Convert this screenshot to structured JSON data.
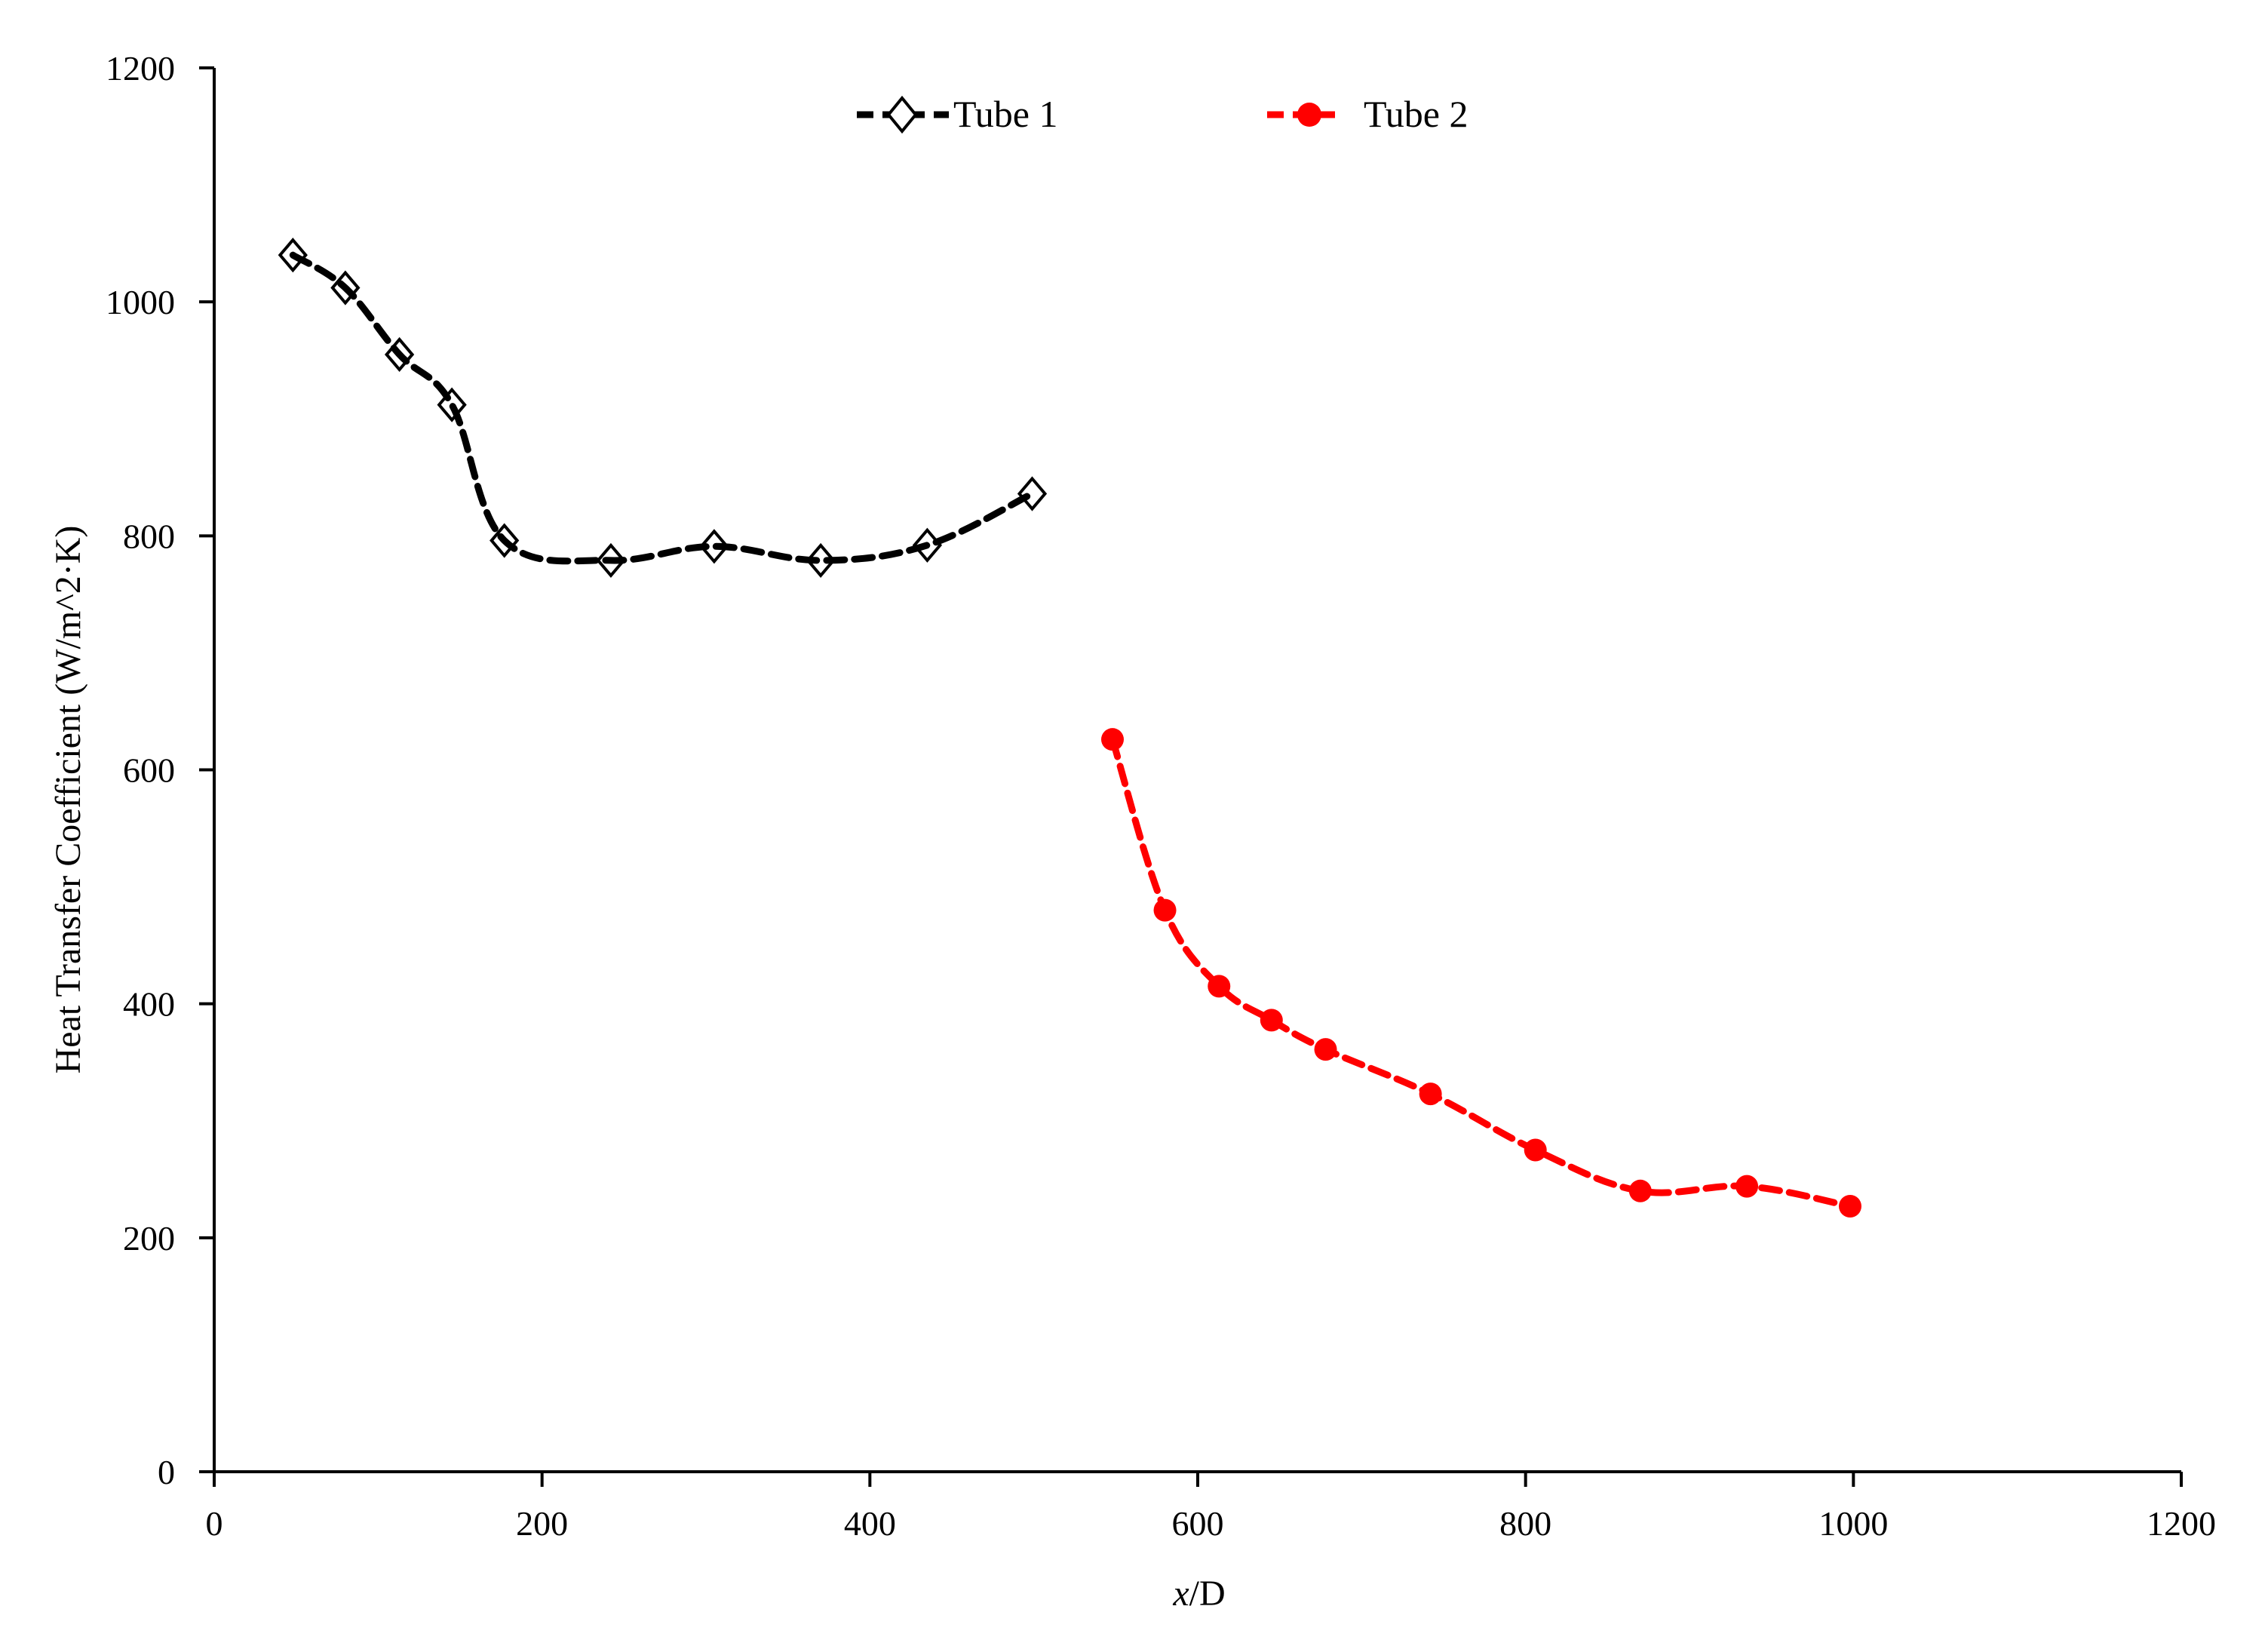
{
  "chart_data": {
    "type": "line",
    "title": "",
    "xlabel_italic": "x",
    "xlabel_rest": "/D",
    "xlabel": "x/D",
    "ylabel": "Heat Transfer Coefficient  (W/m^2·K)",
    "xlim": [
      0,
      1200
    ],
    "ylim": [
      0,
      1200
    ],
    "xticks": [
      0,
      200,
      400,
      600,
      800,
      1000,
      1200
    ],
    "yticks": [
      0,
      200,
      400,
      600,
      800,
      1000,
      1200
    ],
    "grid": false,
    "legend_position": "top-center",
    "series": [
      {
        "name": "Tube 1",
        "color": "#000000",
        "marker": "open-diamond",
        "line": "dashed",
        "x": [
          48,
          80,
          113,
          145,
          177,
          242,
          305,
          370,
          435,
          499
        ],
        "y": [
          1040,
          1012,
          955,
          912,
          796,
          779,
          791,
          779,
          792,
          836
        ]
      },
      {
        "name": "Tube 2",
        "color": "#ff0000",
        "marker": "filled-circle",
        "line": "dashed",
        "x": [
          548,
          580,
          613,
          645,
          678,
          742,
          806,
          870,
          935,
          998
        ],
        "y": [
          626,
          480,
          415,
          386,
          361,
          323,
          275,
          240,
          244,
          227
        ]
      }
    ]
  },
  "legend": {
    "tube1_label": "Tube 1",
    "tube2_label": "Tube 2"
  }
}
